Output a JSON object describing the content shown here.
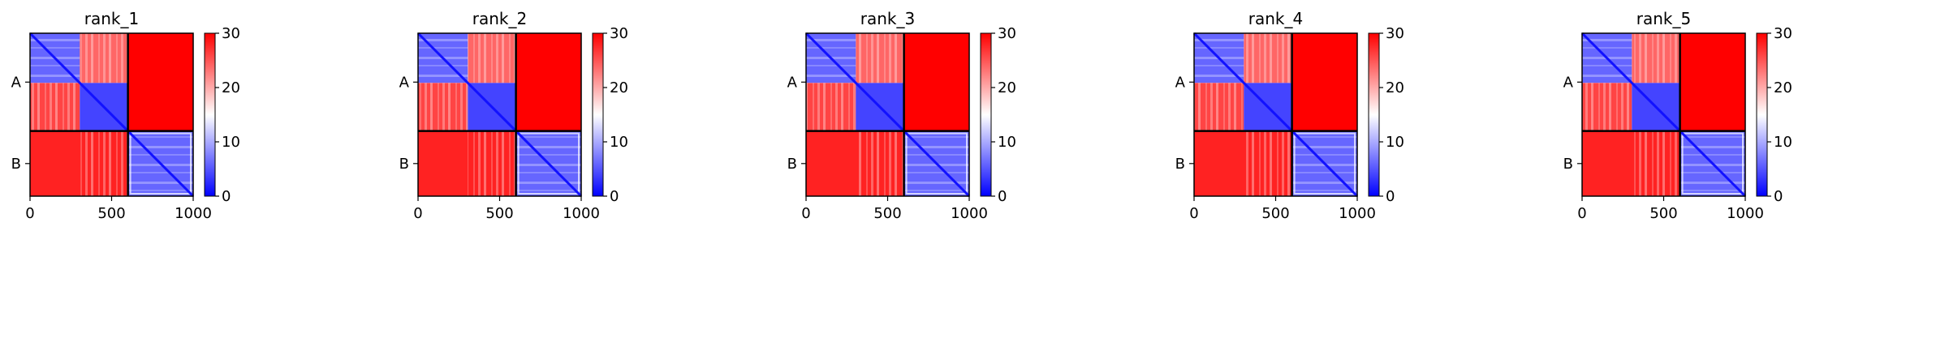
{
  "chart_data": [
    {
      "type": "heatmap",
      "title": "rank_1",
      "xlim": [
        0,
        1000
      ],
      "xticks": [
        0,
        500,
        1000
      ],
      "row_labels": [
        "A",
        "B"
      ],
      "chain_boundary": 600,
      "colorbar": {
        "min": 0,
        "max": 30,
        "ticks": [
          0,
          10,
          20,
          30
        ],
        "colormap": "bwr"
      },
      "blocks": {
        "A_A": {
          "range": [
            0,
            600
          ],
          "sub_boundary": 305,
          "sub_values": [
            [
              6,
              24
            ],
            [
              26,
              4
            ]
          ]
        },
        "A_B": {
          "value": 30
        },
        "B_A": {
          "value": 28
        },
        "B_B": {
          "range": [
            600,
            1000
          ],
          "value": 6
        }
      }
    },
    {
      "type": "heatmap",
      "title": "rank_2",
      "xlim": [
        0,
        1000
      ],
      "xticks": [
        0,
        500,
        1000
      ],
      "row_labels": [
        "A",
        "B"
      ],
      "chain_boundary": 600,
      "colorbar": {
        "min": 0,
        "max": 30,
        "ticks": [
          0,
          10,
          20,
          30
        ],
        "colormap": "bwr"
      },
      "blocks": {
        "A_A": {
          "range": [
            0,
            600
          ],
          "sub_boundary": 305,
          "sub_values": [
            [
              6,
              24
            ],
            [
              26,
              4
            ]
          ]
        },
        "A_B": {
          "value": 30
        },
        "B_A": {
          "value": 28
        },
        "B_B": {
          "range": [
            600,
            1000
          ],
          "value": 6
        }
      }
    },
    {
      "type": "heatmap",
      "title": "rank_3",
      "xlim": [
        0,
        1000
      ],
      "xticks": [
        0,
        500,
        1000
      ],
      "row_labels": [
        "A",
        "B"
      ],
      "chain_boundary": 600,
      "colorbar": {
        "min": 0,
        "max": 30,
        "ticks": [
          0,
          10,
          20,
          30
        ],
        "colormap": "bwr"
      },
      "blocks": {
        "A_A": {
          "range": [
            0,
            600
          ],
          "sub_boundary": 305,
          "sub_values": [
            [
              6,
              24
            ],
            [
              26,
              4
            ]
          ]
        },
        "A_B": {
          "value": 30
        },
        "B_A": {
          "value": 28
        },
        "B_B": {
          "range": [
            600,
            1000
          ],
          "value": 6
        }
      }
    },
    {
      "type": "heatmap",
      "title": "rank_4",
      "xlim": [
        0,
        1000
      ],
      "xticks": [
        0,
        500,
        1000
      ],
      "row_labels": [
        "A",
        "B"
      ],
      "chain_boundary": 600,
      "colorbar": {
        "min": 0,
        "max": 30,
        "ticks": [
          0,
          10,
          20,
          30
        ],
        "colormap": "bwr"
      },
      "blocks": {
        "A_A": {
          "range": [
            0,
            600
          ],
          "sub_boundary": 305,
          "sub_values": [
            [
              6,
              24
            ],
            [
              26,
              4
            ]
          ]
        },
        "A_B": {
          "value": 30
        },
        "B_A": {
          "value": 28
        },
        "B_B": {
          "range": [
            600,
            1000
          ],
          "value": 6
        }
      }
    },
    {
      "type": "heatmap",
      "title": "rank_5",
      "xlim": [
        0,
        1000
      ],
      "xticks": [
        0,
        500,
        1000
      ],
      "row_labels": [
        "A",
        "B"
      ],
      "chain_boundary": 600,
      "colorbar": {
        "min": 0,
        "max": 30,
        "ticks": [
          0,
          10,
          20,
          30
        ],
        "colormap": "bwr"
      },
      "blocks": {
        "A_A": {
          "range": [
            0,
            600
          ],
          "sub_boundary": 305,
          "sub_values": [
            [
              6,
              24
            ],
            [
              26,
              4
            ]
          ]
        },
        "A_B": {
          "value": 30
        },
        "B_A": {
          "value": 28
        },
        "B_B": {
          "range": [
            600,
            1000
          ],
          "value": 6
        }
      }
    }
  ]
}
